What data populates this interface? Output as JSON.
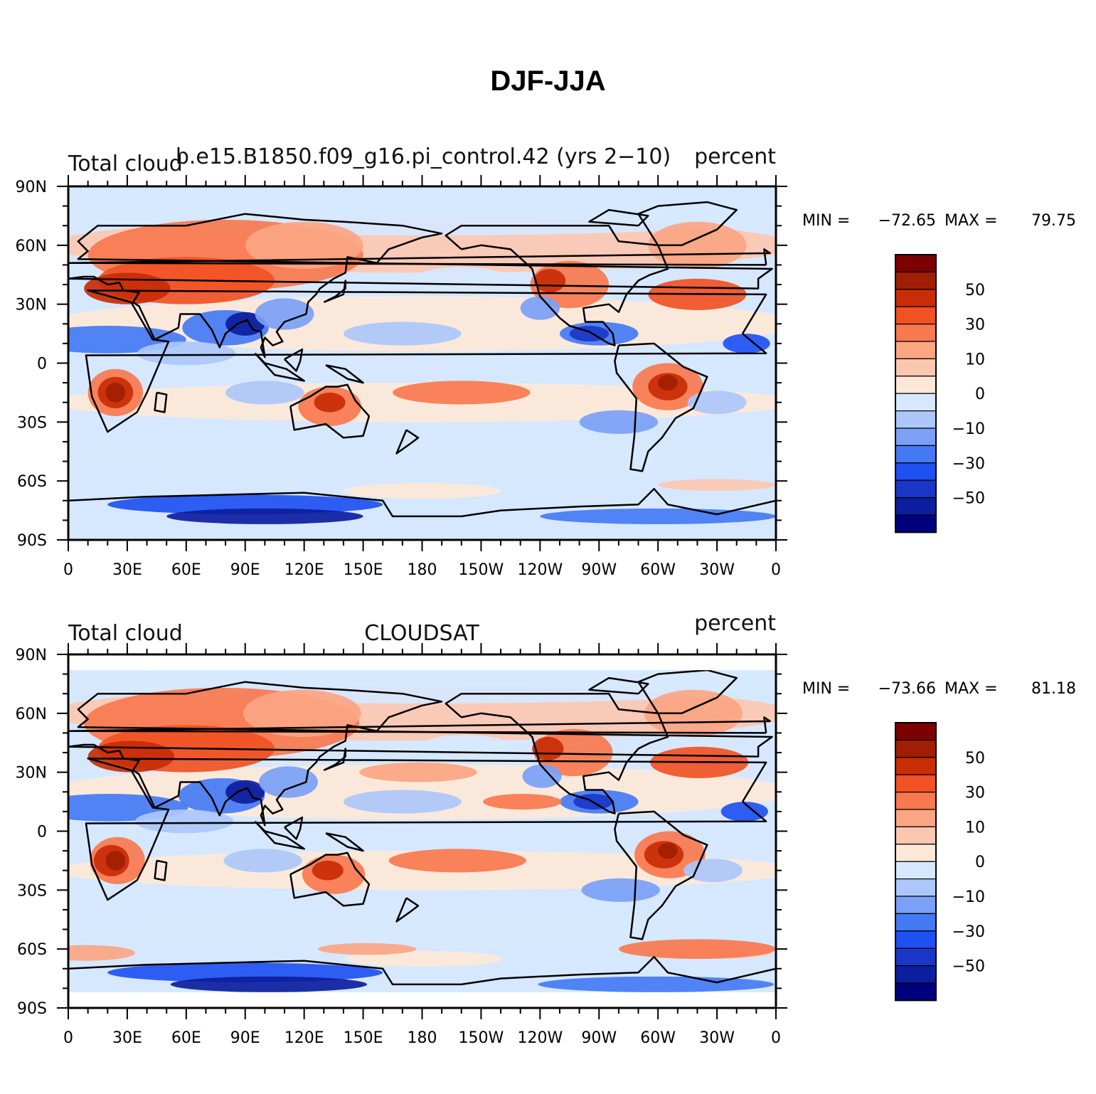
{
  "title": "DJF-JJA",
  "colorbar": {
    "colors": [
      "#00007f",
      "#0c1d9e",
      "#1a37c7",
      "#1f50f2",
      "#4479f4",
      "#7ba0f6",
      "#adc7fb",
      "#d6e8ff",
      "#fde8d8",
      "#fcc7b1",
      "#fba583",
      "#f8784f",
      "#f15123",
      "#c82d05",
      "#a01e03",
      "#7c0000"
    ],
    "labels": [
      "−50",
      "−30",
      "−10",
      "0",
      "10",
      "30",
      "50"
    ]
  },
  "axes": {
    "lat_labels": [
      "90N",
      "60N",
      "30N",
      "0",
      "30S",
      "60S",
      "90S"
    ],
    "lon_labels": [
      "0",
      "30E",
      "60E",
      "90E",
      "120E",
      "150E",
      "180",
      "150W",
      "120W",
      "90W",
      "60W",
      "30W",
      "0"
    ]
  },
  "panels": [
    {
      "left": "Total cloud",
      "center": "b.e15.B1850.f09_g16.pi_control.42 (yrs 2−10)",
      "right": "percent",
      "min": "−72.65",
      "max": "79.75",
      "min_label": "MIN =",
      "max_label": "MAX =",
      "variant": "model"
    },
    {
      "left": "Total cloud",
      "center": "CLOUDSAT",
      "right": "percent",
      "min": "−73.66",
      "max": "81.18",
      "min_label": "MIN =",
      "max_label": "MAX =",
      "variant": "obs"
    }
  ]
}
